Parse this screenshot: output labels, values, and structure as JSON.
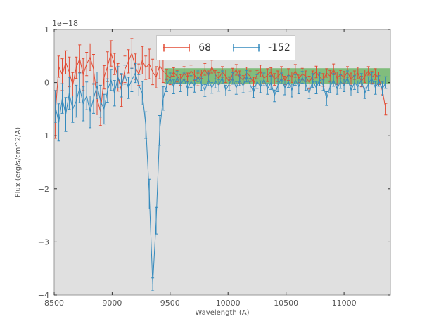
{
  "chart_data": {
    "type": "line",
    "error_bars": true,
    "title": "",
    "xlabel": "Wavelength (A)",
    "ylabel": "Flux (erg/s/cm^2/A)",
    "offset_label": "1e−18",
    "xlim": [
      8500,
      11400
    ],
    "ylim": [
      -4,
      1
    ],
    "xticks": [
      8500,
      9000,
      9500,
      10000,
      10500,
      11000
    ],
    "yticks": [
      -4,
      -3,
      -2,
      -1,
      0,
      1
    ],
    "grid": false,
    "legend_position": "upper center",
    "plot_background": "#e0e0e0",
    "band": {
      "x_start": 9450,
      "x_end": 11395,
      "y_top": 0.27,
      "y_bottom": -0.03,
      "color": "#33a02c",
      "alpha": 0.55
    },
    "x": [
      8510,
      8540,
      8570,
      8600,
      8630,
      8660,
      8690,
      8720,
      8750,
      8780,
      8810,
      8840,
      8870,
      8900,
      8930,
      8960,
      8990,
      9020,
      9050,
      9080,
      9110,
      9140,
      9170,
      9200,
      9230,
      9260,
      9290,
      9320,
      9350,
      9380,
      9410,
      9440,
      9470,
      9500,
      9530,
      9560,
      9590,
      9620,
      9650,
      9680,
      9710,
      9740,
      9770,
      9800,
      9830,
      9860,
      9890,
      9920,
      9950,
      9980,
      10010,
      10040,
      10070,
      10100,
      10130,
      10160,
      10190,
      10220,
      10250,
      10280,
      10310,
      10340,
      10370,
      10400,
      10430,
      10460,
      10490,
      10520,
      10550,
      10580,
      10610,
      10640,
      10670,
      10700,
      10730,
      10760,
      10790,
      10820,
      10850,
      10880,
      10910,
      10940,
      10970,
      11000,
      11030,
      11060,
      11090,
      11120,
      11150,
      11180,
      11210,
      11240,
      11270,
      11300,
      11330,
      11360
    ],
    "series": [
      {
        "name": "68",
        "color": "#E24A33",
        "values": [
          -0.6,
          0.3,
          0.15,
          0.38,
          0.2,
          -0.05,
          0.28,
          0.45,
          0.15,
          0.35,
          0.48,
          0.25,
          -0.3,
          -0.55,
          0.1,
          0.3,
          0.55,
          0.35,
          0.1,
          -0.15,
          0.25,
          0.4,
          0.55,
          0.3,
          0.15,
          0.42,
          0.28,
          0.35,
          0.2,
          0.1,
          0.32,
          0.22,
          0.15,
          0.08,
          0.2,
          0.12,
          0.05,
          0.18,
          0.1,
          0.22,
          0.14,
          0.06,
          0.16,
          0.25,
          0.12,
          0.3,
          0.15,
          0.08,
          0.2,
          0.12,
          0.02,
          0.16,
          0.24,
          0.1,
          0.05,
          0.18,
          0.12,
          -0.02,
          0.15,
          0.22,
          0.08,
          0.14,
          0.2,
          0.06,
          0.12,
          0.18,
          0.04,
          0.15,
          0.1,
          0.22,
          0.08,
          0.16,
          0.12,
          0.0,
          0.14,
          0.2,
          0.1,
          0.05,
          0.18,
          0.12,
          0.25,
          0.08,
          0.15,
          0.1,
          0.2,
          0.06,
          0.14,
          0.18,
          0.02,
          0.12,
          0.22,
          0.1,
          0.16,
          0.08,
          -0.15,
          -0.5
        ],
        "yerr": [
          0.45,
          0.2,
          0.3,
          0.22,
          0.28,
          0.24,
          0.2,
          0.26,
          0.3,
          0.22,
          0.25,
          0.28,
          0.3,
          0.26,
          0.22,
          0.28,
          0.24,
          0.2,
          0.26,
          0.3,
          0.25,
          0.22,
          0.28,
          0.24,
          0.2,
          0.26,
          0.22,
          0.28,
          0.24,
          0.2,
          0.25,
          0.22,
          0.1,
          0.12,
          0.08,
          0.11,
          0.1,
          0.12,
          0.08,
          0.11,
          0.1,
          0.12,
          0.08,
          0.11,
          0.1,
          0.12,
          0.08,
          0.11,
          0.1,
          0.12,
          0.08,
          0.11,
          0.1,
          0.12,
          0.08,
          0.11,
          0.1,
          0.12,
          0.08,
          0.11,
          0.1,
          0.12,
          0.08,
          0.11,
          0.1,
          0.12,
          0.08,
          0.11,
          0.1,
          0.12,
          0.08,
          0.11,
          0.1,
          0.12,
          0.08,
          0.11,
          0.1,
          0.12,
          0.08,
          0.11,
          0.1,
          0.12,
          0.08,
          0.11,
          0.1,
          0.12,
          0.08,
          0.11,
          0.1,
          0.12,
          0.08,
          0.11,
          0.1,
          0.12,
          0.08,
          0.11
        ]
      },
      {
        "name": "-152",
        "color": "#348ABD",
        "values": [
          -0.45,
          -0.75,
          -0.3,
          -0.6,
          -0.2,
          -0.5,
          -0.35,
          -0.1,
          -0.4,
          -0.25,
          -0.55,
          -0.3,
          -0.05,
          -0.35,
          -0.5,
          -0.15,
          0.05,
          -0.2,
          0.1,
          -0.05,
          0.15,
          -0.1,
          0.05,
          0.18,
          -0.05,
          -0.2,
          -0.8,
          -2.1,
          -3.8,
          -2.6,
          -0.9,
          -0.3,
          -0.05,
          0.08,
          -0.08,
          0.1,
          -0.05,
          0.08,
          -0.12,
          0.02,
          -0.06,
          0.12,
          -0.02,
          -0.15,
          0.06,
          -0.1,
          0.03,
          -0.05,
          0.1,
          -0.15,
          -0.02,
          0.08,
          -0.1,
          0.04,
          -0.06,
          0.12,
          -0.04,
          -0.18,
          0.02,
          -0.08,
          0.06,
          -0.12,
          0.0,
          -0.25,
          -0.05,
          0.08,
          -0.1,
          0.02,
          -0.15,
          0.05,
          -0.08,
          0.1,
          -0.03,
          -0.2,
          0.04,
          -0.1,
          0.06,
          -0.05,
          -0.3,
          -0.08,
          0.05,
          -0.12,
          0.02,
          -0.06,
          0.1,
          -0.15,
          0.0,
          -0.08,
          0.05,
          -0.2,
          -0.02,
          0.08,
          -0.1,
          0.03,
          -0.12,
          0.0
        ],
        "yerr": [
          0.3,
          0.35,
          0.28,
          0.32,
          0.3,
          0.25,
          0.3,
          0.28,
          0.32,
          0.26,
          0.3,
          0.28,
          0.25,
          0.3,
          0.28,
          0.22,
          0.2,
          0.24,
          0.2,
          0.22,
          0.18,
          0.2,
          0.22,
          0.18,
          0.2,
          0.22,
          0.25,
          0.28,
          0.12,
          0.25,
          0.28,
          0.22,
          0.12,
          0.1,
          0.13,
          0.11,
          0.12,
          0.1,
          0.13,
          0.11,
          0.12,
          0.1,
          0.13,
          0.11,
          0.12,
          0.1,
          0.13,
          0.11,
          0.12,
          0.1,
          0.13,
          0.11,
          0.12,
          0.1,
          0.13,
          0.11,
          0.12,
          0.1,
          0.13,
          0.11,
          0.12,
          0.1,
          0.13,
          0.11,
          0.12,
          0.1,
          0.13,
          0.11,
          0.12,
          0.1,
          0.13,
          0.11,
          0.12,
          0.1,
          0.13,
          0.11,
          0.12,
          0.1,
          0.13,
          0.11,
          0.12,
          0.1,
          0.13,
          0.11,
          0.12,
          0.1,
          0.13,
          0.11,
          0.12,
          0.1,
          0.13,
          0.11,
          0.12,
          0.1,
          0.13,
          0.11
        ]
      }
    ]
  }
}
